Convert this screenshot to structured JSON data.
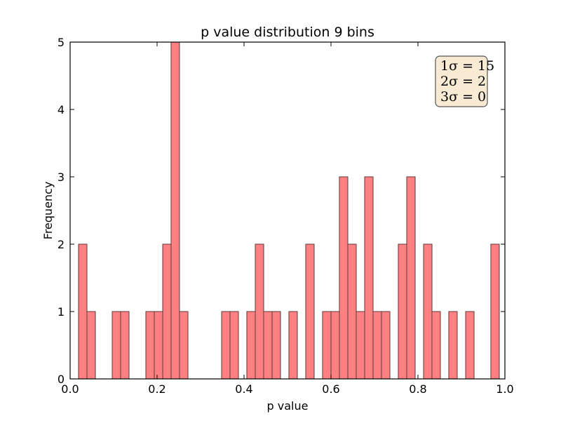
{
  "chart_data": {
    "type": "bar",
    "title": "p value distribution 9 bins",
    "xlabel": "p value",
    "ylabel": "Frequency",
    "xlim": [
      0.0,
      1.0
    ],
    "ylim": [
      0,
      5
    ],
    "xticks": [
      "0.0",
      "0.2",
      "0.4",
      "0.6",
      "0.8",
      "1.0"
    ],
    "yticks": [
      "0",
      "1",
      "2",
      "3",
      "4",
      "5"
    ],
    "bar_color": "#ff8080",
    "bar_edge_color": "#5a3a3a",
    "bin_width": 0.0194,
    "bins": [
      {
        "x": 0.029,
        "count": 2
      },
      {
        "x": 0.0484,
        "count": 1
      },
      {
        "x": 0.1065,
        "count": 1
      },
      {
        "x": 0.1258,
        "count": 1
      },
      {
        "x": 0.1839,
        "count": 1
      },
      {
        "x": 0.2032,
        "count": 1
      },
      {
        "x": 0.2226,
        "count": 2
      },
      {
        "x": 0.2419,
        "count": 5
      },
      {
        "x": 0.2613,
        "count": 1
      },
      {
        "x": 0.3581,
        "count": 1
      },
      {
        "x": 0.3774,
        "count": 1
      },
      {
        "x": 0.4161,
        "count": 1
      },
      {
        "x": 0.4355,
        "count": 2
      },
      {
        "x": 0.4548,
        "count": 1
      },
      {
        "x": 0.4742,
        "count": 1
      },
      {
        "x": 0.5129,
        "count": 1
      },
      {
        "x": 0.5516,
        "count": 2
      },
      {
        "x": 0.5903,
        "count": 1
      },
      {
        "x": 0.6097,
        "count": 1
      },
      {
        "x": 0.629,
        "count": 3
      },
      {
        "x": 0.6484,
        "count": 2
      },
      {
        "x": 0.6677,
        "count": 1
      },
      {
        "x": 0.6871,
        "count": 3
      },
      {
        "x": 0.7065,
        "count": 1
      },
      {
        "x": 0.7258,
        "count": 1
      },
      {
        "x": 0.7645,
        "count": 2
      },
      {
        "x": 0.7839,
        "count": 3
      },
      {
        "x": 0.8226,
        "count": 2
      },
      {
        "x": 0.8419,
        "count": 1
      },
      {
        "x": 0.8806,
        "count": 1
      },
      {
        "x": 0.9194,
        "count": 1
      },
      {
        "x": 0.9774,
        "count": 2
      }
    ],
    "annotation": {
      "lines": [
        "1σ = 15",
        "2σ = 2",
        "3σ = 0"
      ],
      "box_fill": "#f8ead3",
      "placement": "top-right"
    }
  }
}
